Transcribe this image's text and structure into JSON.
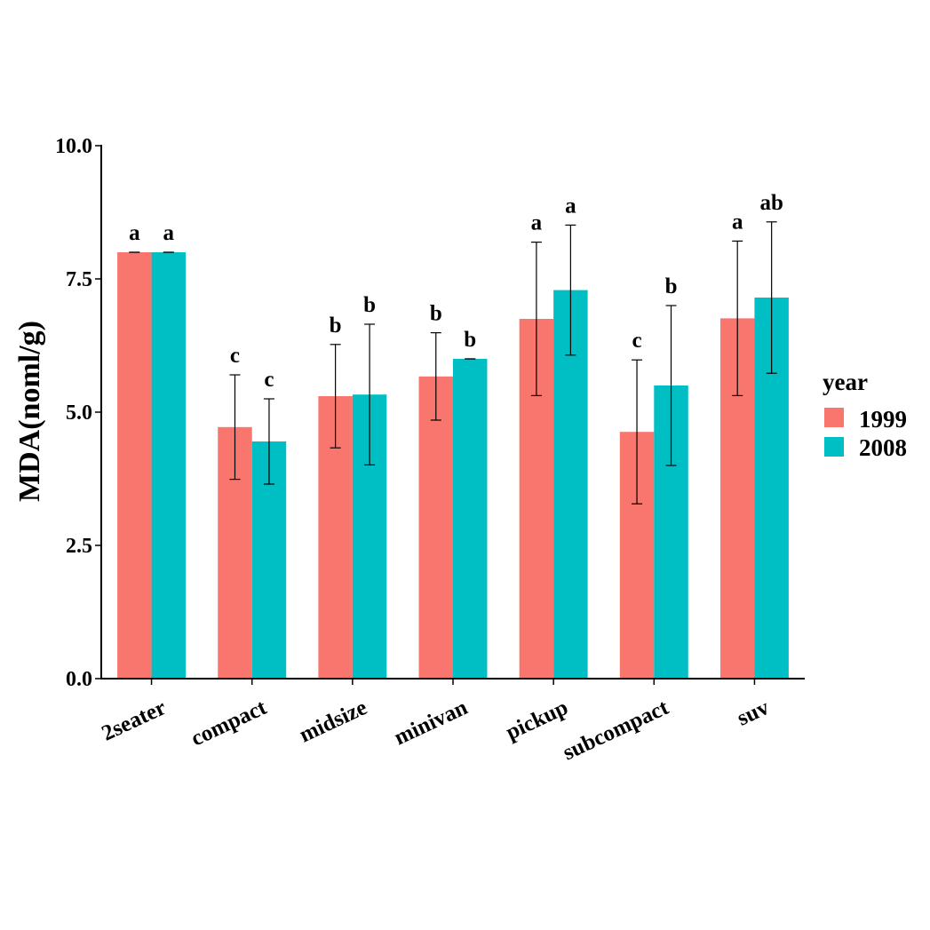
{
  "chart_data": {
    "type": "bar",
    "title": "",
    "xlabel": "",
    "ylabel": "MDA(noml/g)",
    "ylim": [
      0,
      10
    ],
    "yticks": [
      0,
      2.5,
      5,
      7.5,
      10
    ],
    "ytick_labels": [
      "0.0",
      "2.5",
      "5.0",
      "7.5",
      "10.0"
    ],
    "grid": false,
    "legend": {
      "title": "year",
      "position": "right"
    },
    "categories": [
      "2seater",
      "compact",
      "midsize",
      "minivan",
      "pickup",
      "subcompact",
      "suv"
    ],
    "series": [
      {
        "name": "1999",
        "color": "#F8766D",
        "values": [
          8.0,
          4.72,
          5.3,
          5.67,
          6.75,
          4.63,
          6.76
        ],
        "error": [
          0.0,
          0.98,
          0.97,
          0.82,
          1.44,
          1.35,
          1.45
        ],
        "labels": [
          "a",
          "c",
          "b",
          "b",
          "a",
          "c",
          "a"
        ]
      },
      {
        "name": "2008",
        "color": "#00BFC4",
        "values": [
          8.0,
          4.45,
          5.33,
          6.0,
          7.29,
          5.5,
          7.15
        ],
        "error": [
          0.0,
          0.8,
          1.32,
          0.0,
          1.22,
          1.5,
          1.42
        ],
        "labels": [
          "a",
          "c",
          "b",
          "b",
          "a",
          "b",
          "ab"
        ]
      }
    ]
  }
}
